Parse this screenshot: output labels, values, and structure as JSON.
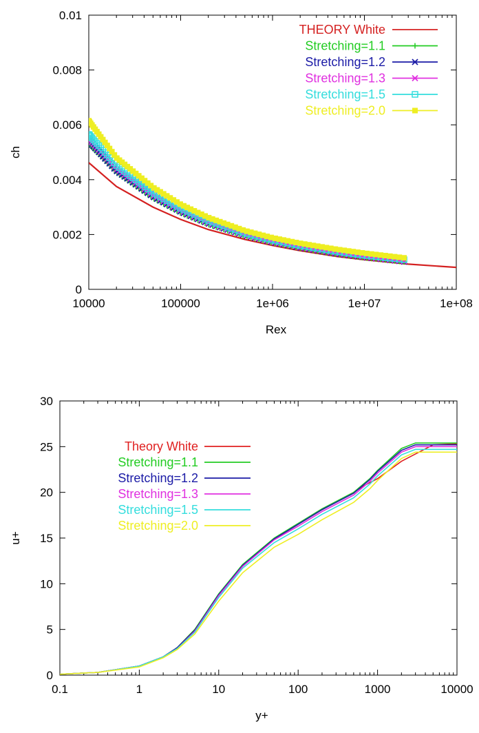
{
  "chart_data": [
    {
      "type": "line",
      "xlabel": "Rex",
      "ylabel": "ch",
      "xscale": "log",
      "xlim": [
        10000,
        100000000
      ],
      "ylim": [
        0,
        0.01
      ],
      "xticks": [
        10000,
        100000,
        1000000,
        10000000,
        100000000
      ],
      "xtick_labels": [
        "10000",
        "100000",
        "1e+06",
        "1e+07",
        "1e+08"
      ],
      "yticks": [
        0,
        0.002,
        0.004,
        0.006,
        0.008,
        0.01
      ],
      "ytick_labels": [
        "0",
        "0.002",
        "0.004",
        "0.006",
        "0.008",
        "0.01"
      ],
      "grid": false,
      "legend": "top-right",
      "series": [
        {
          "name": "THEORY White",
          "color": "#d42020",
          "marker": "none",
          "x": [
            10000,
            20000,
            50000,
            100000,
            200000,
            500000,
            1000000,
            2000000,
            5000000,
            10000000,
            30000000,
            100000000
          ],
          "y": [
            0.00462,
            0.00375,
            0.003,
            0.00255,
            0.00218,
            0.00182,
            0.0016,
            0.00141,
            0.0012,
            0.00108,
            0.00092,
            0.0008
          ]
        },
        {
          "name": "Stretching=1.1",
          "color": "#22cc22",
          "marker": "plus",
          "x": [
            10000,
            20000,
            50000,
            100000,
            200000,
            500000,
            1000000,
            2000000,
            5000000,
            10000000,
            27000000
          ],
          "y": [
            0.0053,
            0.00425,
            0.00332,
            0.00278,
            0.00236,
            0.00194,
            0.0017,
            0.0015,
            0.00128,
            0.00115,
            0.001
          ]
        },
        {
          "name": "Stretching=1.2",
          "color": "#1a1aa6",
          "marker": "cross",
          "x": [
            10000,
            20000,
            50000,
            100000,
            200000,
            500000,
            1000000,
            2000000,
            5000000,
            10000000,
            27000000
          ],
          "y": [
            0.0054,
            0.00432,
            0.00338,
            0.00283,
            0.0024,
            0.00197,
            0.00172,
            0.00152,
            0.0013,
            0.00117,
            0.00101
          ]
        },
        {
          "name": "Stretching=1.3",
          "color": "#e030e0",
          "marker": "x",
          "x": [
            10000,
            20000,
            50000,
            100000,
            200000,
            500000,
            1000000,
            2000000,
            5000000,
            10000000,
            27000000
          ],
          "y": [
            0.0055,
            0.0044,
            0.00344,
            0.00288,
            0.00244,
            0.002,
            0.00175,
            0.00155,
            0.00133,
            0.00119,
            0.00103
          ]
        },
        {
          "name": "Stretching=1.5",
          "color": "#33dddd",
          "marker": "square",
          "x": [
            10000,
            20000,
            50000,
            100000,
            200000,
            500000,
            1000000,
            2000000,
            5000000,
            10000000,
            27000000
          ],
          "y": [
            0.00565,
            0.00452,
            0.00352,
            0.00295,
            0.0025,
            0.00205,
            0.0018,
            0.0016,
            0.00138,
            0.00124,
            0.00108
          ]
        },
        {
          "name": "Stretching=2.0",
          "color": "#eeee22",
          "marker": "filled-square",
          "x": [
            10000,
            20000,
            50000,
            100000,
            200000,
            500000,
            1000000,
            2000000,
            5000000,
            10000000,
            27000000
          ],
          "y": [
            0.00615,
            0.0048,
            0.00372,
            0.0031,
            0.00262,
            0.00214,
            0.00188,
            0.00168,
            0.00146,
            0.00132,
            0.00115
          ]
        }
      ]
    },
    {
      "type": "line",
      "xlabel": "y+",
      "ylabel": "u+",
      "xscale": "log",
      "xlim": [
        0.1,
        10000
      ],
      "ylim": [
        0,
        30
      ],
      "xticks": [
        0.1,
        1,
        10,
        100,
        1000,
        10000
      ],
      "xtick_labels": [
        "0.1",
        "1",
        "10",
        "100",
        "1000",
        "10000"
      ],
      "yticks": [
        0,
        5,
        10,
        15,
        20,
        25,
        30
      ],
      "ytick_labels": [
        "0",
        "5",
        "10",
        "15",
        "20",
        "25",
        "30"
      ],
      "grid": false,
      "legend": "top-left",
      "series": [
        {
          "name": "Theory White",
          "color": "#e02020",
          "x": [
            0.1,
            0.3,
            1,
            2,
            3,
            5,
            10,
            20,
            50,
            100,
            200,
            500,
            700,
            1000,
            2000,
            5000,
            10000
          ],
          "y": [
            0.1,
            0.3,
            1.0,
            2.0,
            3.0,
            5.0,
            8.8,
            11.9,
            14.9,
            16.5,
            18.1,
            20.0,
            20.8,
            21.5,
            23.4,
            25.2,
            25.3
          ]
        },
        {
          "name": "Stretching=1.1",
          "color": "#22cc22",
          "x": [
            0.1,
            0.3,
            1,
            2,
            3,
            5,
            10,
            20,
            50,
            100,
            200,
            500,
            800,
            1000,
            2000,
            3000,
            10000
          ],
          "y": [
            0.1,
            0.3,
            1.0,
            2.0,
            3.0,
            5.0,
            8.9,
            12.1,
            15.0,
            16.6,
            18.2,
            20.0,
            21.5,
            22.4,
            24.8,
            25.4,
            25.4
          ]
        },
        {
          "name": "Stretching=1.2",
          "color": "#1a1aa6",
          "x": [
            0.1,
            0.3,
            1,
            2,
            3,
            5,
            10,
            20,
            50,
            100,
            200,
            500,
            800,
            1000,
            2000,
            3000,
            10000
          ],
          "y": [
            0.1,
            0.3,
            1.0,
            2.0,
            3.0,
            4.9,
            8.8,
            12.0,
            14.9,
            16.5,
            18.1,
            19.9,
            21.4,
            22.3,
            24.6,
            25.2,
            25.2
          ]
        },
        {
          "name": "Stretching=1.3",
          "color": "#e030e0",
          "x": [
            0.1,
            0.3,
            1,
            2,
            3,
            5,
            10,
            20,
            50,
            100,
            200,
            500,
            800,
            1000,
            2000,
            3000,
            10000
          ],
          "y": [
            0.1,
            0.3,
            1.0,
            2.0,
            2.9,
            4.8,
            8.7,
            11.9,
            14.8,
            16.3,
            17.9,
            19.7,
            21.2,
            22.1,
            24.4,
            25.0,
            25.0
          ]
        },
        {
          "name": "Stretching=1.5",
          "color": "#33dddd",
          "x": [
            0.1,
            0.3,
            1,
            2,
            3,
            5,
            10,
            20,
            50,
            100,
            200,
            500,
            800,
            1000,
            2000,
            3000,
            10000
          ],
          "y": [
            0.1,
            0.3,
            1.0,
            2.0,
            2.9,
            4.7,
            8.5,
            11.7,
            14.5,
            16.0,
            17.6,
            19.4,
            20.9,
            21.8,
            24.1,
            24.7,
            24.7
          ]
        },
        {
          "name": "Stretching=2.0",
          "color": "#eeee22",
          "x": [
            0.1,
            0.3,
            1,
            2,
            3,
            5,
            10,
            20,
            50,
            100,
            200,
            500,
            800,
            1000,
            2000,
            3000,
            10000
          ],
          "y": [
            0.1,
            0.3,
            0.9,
            1.9,
            2.8,
            4.5,
            8.1,
            11.2,
            14.0,
            15.4,
            17.0,
            18.9,
            20.4,
            21.3,
            23.7,
            24.4,
            24.4
          ]
        }
      ]
    }
  ]
}
